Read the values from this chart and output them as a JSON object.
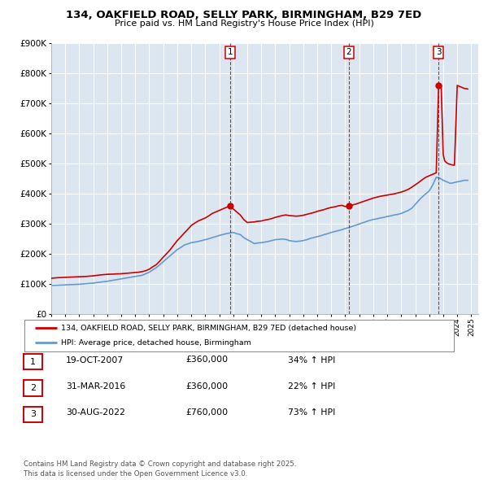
{
  "title": "134, OAKFIELD ROAD, SELLY PARK, BIRMINGHAM, B29 7ED",
  "subtitle": "Price paid vs. HM Land Registry's House Price Index (HPI)",
  "legend_line1": "134, OAKFIELD ROAD, SELLY PARK, BIRMINGHAM, B29 7ED (detached house)",
  "legend_line2": "HPI: Average price, detached house, Birmingham",
  "footnote": "Contains HM Land Registry data © Crown copyright and database right 2025.\nThis data is licensed under the Open Government Licence v3.0.",
  "transactions": [
    {
      "num": 1,
      "date": "19-OCT-2007",
      "price": "£360,000",
      "hpi_pct": "34%",
      "x": 2007.8
    },
    {
      "num": 2,
      "date": "31-MAR-2016",
      "price": "£360,000",
      "hpi_pct": "22%",
      "x": 2016.25
    },
    {
      "num": 3,
      "date": "30-AUG-2022",
      "price": "£760,000",
      "hpi_pct": "73%",
      "x": 2022.67
    }
  ],
  "red_color": "#cc0000",
  "blue_color": "#6699cc",
  "bg_color": "#dce6f0",
  "grid_color": "#ffffff",
  "ylim_max": 900000,
  "xlim_start": 1995,
  "xlim_end": 2025.5,
  "hpi_years": [
    1995.0,
    1995.25,
    1995.5,
    1995.75,
    1996.0,
    1996.25,
    1996.5,
    1996.75,
    1997.0,
    1997.25,
    1997.5,
    1997.75,
    1998.0,
    1998.25,
    1998.5,
    1998.75,
    1999.0,
    1999.25,
    1999.5,
    1999.75,
    2000.0,
    2000.25,
    2000.5,
    2000.75,
    2001.0,
    2001.25,
    2001.5,
    2001.75,
    2002.0,
    2002.25,
    2002.5,
    2002.75,
    2003.0,
    2003.25,
    2003.5,
    2003.75,
    2004.0,
    2004.25,
    2004.5,
    2004.75,
    2005.0,
    2005.25,
    2005.5,
    2005.75,
    2006.0,
    2006.25,
    2006.5,
    2006.75,
    2007.0,
    2007.25,
    2007.5,
    2007.75,
    2008.0,
    2008.25,
    2008.5,
    2008.75,
    2009.0,
    2009.25,
    2009.5,
    2009.75,
    2010.0,
    2010.25,
    2010.5,
    2010.75,
    2011.0,
    2011.25,
    2011.5,
    2011.75,
    2012.0,
    2012.25,
    2012.5,
    2012.75,
    2013.0,
    2013.25,
    2013.5,
    2013.75,
    2014.0,
    2014.25,
    2014.5,
    2014.75,
    2015.0,
    2015.25,
    2015.5,
    2015.75,
    2016.0,
    2016.25,
    2016.5,
    2016.75,
    2017.0,
    2017.25,
    2017.5,
    2017.75,
    2018.0,
    2018.25,
    2018.5,
    2018.75,
    2019.0,
    2019.25,
    2019.5,
    2019.75,
    2020.0,
    2020.25,
    2020.5,
    2020.75,
    2021.0,
    2021.25,
    2021.5,
    2021.75,
    2022.0,
    2022.25,
    2022.5,
    2022.75,
    2023.0,
    2023.25,
    2023.5,
    2023.75,
    2024.0,
    2024.25,
    2024.5,
    2024.75
  ],
  "hpi_values": [
    96000,
    96500,
    97000,
    97500,
    98000,
    98500,
    99000,
    99500,
    100000,
    101000,
    102000,
    103000,
    104000,
    105500,
    107000,
    108500,
    110000,
    112000,
    114000,
    116000,
    118000,
    120000,
    122000,
    124000,
    126000,
    128000,
    130000,
    135000,
    140000,
    148000,
    155000,
    165000,
    175000,
    185000,
    195000,
    205000,
    215000,
    222000,
    230000,
    234000,
    238000,
    240000,
    242000,
    245000,
    248000,
    251000,
    255000,
    258000,
    262000,
    265000,
    268000,
    270000,
    272000,
    268000,
    265000,
    255000,
    248000,
    242000,
    235000,
    237000,
    238000,
    240000,
    242000,
    245000,
    248000,
    249000,
    250000,
    249000,
    245000,
    243000,
    242000,
    243000,
    245000,
    248000,
    252000,
    255000,
    258000,
    261000,
    265000,
    268000,
    272000,
    275000,
    278000,
    281000,
    285000,
    288000,
    292000,
    296000,
    300000,
    304000,
    308000,
    312000,
    315000,
    317000,
    320000,
    322000,
    325000,
    327000,
    330000,
    332000,
    335000,
    340000,
    345000,
    352000,
    365000,
    378000,
    390000,
    400000,
    410000,
    430000,
    455000,
    452000,
    445000,
    440000,
    435000,
    437000,
    440000,
    442000,
    445000,
    445000
  ],
  "red_years": [
    1995.0,
    1995.25,
    1995.5,
    1995.75,
    1996.0,
    1996.25,
    1996.5,
    1996.75,
    1997.0,
    1997.25,
    1997.5,
    1997.75,
    1998.0,
    1998.25,
    1998.5,
    1998.75,
    1999.0,
    1999.25,
    1999.5,
    1999.75,
    2000.0,
    2000.25,
    2000.5,
    2000.75,
    2001.0,
    2001.25,
    2001.5,
    2001.75,
    2002.0,
    2002.25,
    2002.5,
    2002.75,
    2003.0,
    2003.25,
    2003.5,
    2003.75,
    2004.0,
    2004.25,
    2004.5,
    2004.75,
    2005.0,
    2005.25,
    2005.5,
    2005.75,
    2006.0,
    2006.25,
    2006.5,
    2006.75,
    2007.0,
    2007.25,
    2007.5,
    2007.8,
    2008.0,
    2008.25,
    2008.5,
    2008.75,
    2009.0,
    2009.25,
    2009.5,
    2009.75,
    2010.0,
    2010.25,
    2010.5,
    2010.75,
    2011.0,
    2011.25,
    2011.5,
    2011.75,
    2012.0,
    2012.25,
    2012.5,
    2012.75,
    2013.0,
    2013.25,
    2013.5,
    2013.75,
    2014.0,
    2014.25,
    2014.5,
    2014.75,
    2015.0,
    2015.25,
    2015.5,
    2015.75,
    2016.0,
    2016.25,
    2016.5,
    2016.75,
    2017.0,
    2017.25,
    2017.5,
    2017.75,
    2018.0,
    2018.25,
    2018.5,
    2018.75,
    2019.0,
    2019.25,
    2019.5,
    2019.75,
    2020.0,
    2020.25,
    2020.5,
    2020.75,
    2021.0,
    2021.25,
    2021.5,
    2021.75,
    2022.0,
    2022.25,
    2022.5,
    2022.67,
    2022.85,
    2023.0,
    2023.1,
    2023.2,
    2023.35,
    2023.5,
    2023.65,
    2023.8,
    2024.0,
    2024.25,
    2024.5,
    2024.75
  ],
  "red_values": [
    120000,
    121000,
    122000,
    122500,
    123000,
    123500,
    124000,
    124500,
    125000,
    125500,
    126000,
    127000,
    128000,
    129500,
    131000,
    132000,
    133000,
    133500,
    134000,
    134500,
    135000,
    136000,
    137000,
    138000,
    139000,
    140000,
    142000,
    145000,
    150000,
    158000,
    165000,
    177000,
    190000,
    202000,
    215000,
    230000,
    245000,
    257000,
    270000,
    282000,
    295000,
    303000,
    310000,
    315000,
    320000,
    327000,
    335000,
    340000,
    345000,
    350000,
    355000,
    360000,
    350000,
    340000,
    330000,
    315000,
    305000,
    306000,
    307000,
    309000,
    310000,
    313000,
    315000,
    318000,
    322000,
    325000,
    328000,
    330000,
    328000,
    327000,
    326000,
    327000,
    329000,
    332000,
    335000,
    338000,
    342000,
    345000,
    348000,
    352000,
    355000,
    357000,
    360000,
    362000,
    358000,
    360000,
    363000,
    366000,
    370000,
    374000,
    378000,
    382000,
    386000,
    389000,
    392000,
    394000,
    396000,
    398000,
    400000,
    403000,
    406000,
    410000,
    415000,
    422000,
    430000,
    438000,
    447000,
    455000,
    460000,
    465000,
    470000,
    760000,
    760000,
    530000,
    510000,
    505000,
    500000,
    498000,
    496000,
    495000,
    760000,
    755000,
    750000,
    748000
  ]
}
